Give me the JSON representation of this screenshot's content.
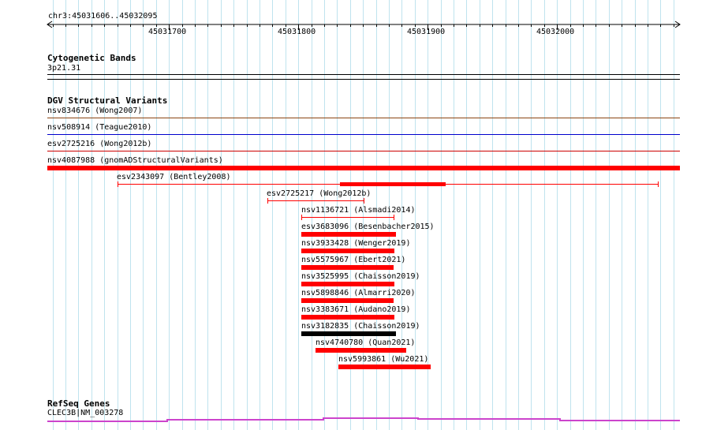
{
  "ruler": {
    "location": "chr3:45031606..45032095",
    "ticks": [
      {
        "label": "45031700",
        "pos": 45031700
      },
      {
        "label": "45031800",
        "pos": 45031800
      },
      {
        "label": "45031900",
        "pos": 45031900
      },
      {
        "label": "45032000",
        "pos": 45032000
      }
    ]
  },
  "cytoband": {
    "title": "Cytogenetic Bands",
    "band": "3p21.31"
  },
  "dgv": {
    "title": "DGV Structural Variants",
    "variants": [
      {
        "label": "nsv834676 (Wong2007)",
        "color": "#8b4513",
        "style": "full-line"
      },
      {
        "label": "nsv508914 (Teague2010)",
        "color": "#0000cc",
        "style": "full-line"
      },
      {
        "label": "esv2725216 (Wong2012b)",
        "color": "#cc0000",
        "style": "full-line"
      },
      {
        "label": "nsv4087988 (gnomADStructuralVariants)",
        "color": "#ff0000",
        "style": "full-thick"
      },
      {
        "label": "esv2343097 (Bentley2008)",
        "color": "#ff0000",
        "style": "line-with-block"
      },
      {
        "label": "esv2725217 (Wong2012b)",
        "color": "#ff0000",
        "style": "line"
      },
      {
        "label": "nsv1136721 (Alsmadi2014)",
        "color": "#ff0000",
        "style": "line"
      },
      {
        "label": "esv3683096 (Besenbacher2015)",
        "color": "#ff0000",
        "style": "block"
      },
      {
        "label": "nsv3933428 (Wenger2019)",
        "color": "#ff0000",
        "style": "block"
      },
      {
        "label": "nsv5575967 (Ebert2021)",
        "color": "#ff0000",
        "style": "block"
      },
      {
        "label": "nsv3525995 (Chaisson2019)",
        "color": "#ff0000",
        "style": "block"
      },
      {
        "label": "nsv5898846 (Almarri2020)",
        "color": "#ff0000",
        "style": "block"
      },
      {
        "label": "nsv3383671 (Audano2019)",
        "color": "#ff0000",
        "style": "block"
      },
      {
        "label": "nsv3182835 (Chaisson2019)",
        "color": "#000000",
        "style": "block"
      },
      {
        "label": "nsv4740780 (Quan2021)",
        "color": "#ff0000",
        "style": "block"
      },
      {
        "label": "nsv5993861 (Wu2021)",
        "color": "#ff0000",
        "style": "block"
      }
    ]
  },
  "refseq": {
    "title": "RefSeq Genes",
    "gene": "CLEC3B|NM_003278",
    "color": "#cc44cc"
  }
}
